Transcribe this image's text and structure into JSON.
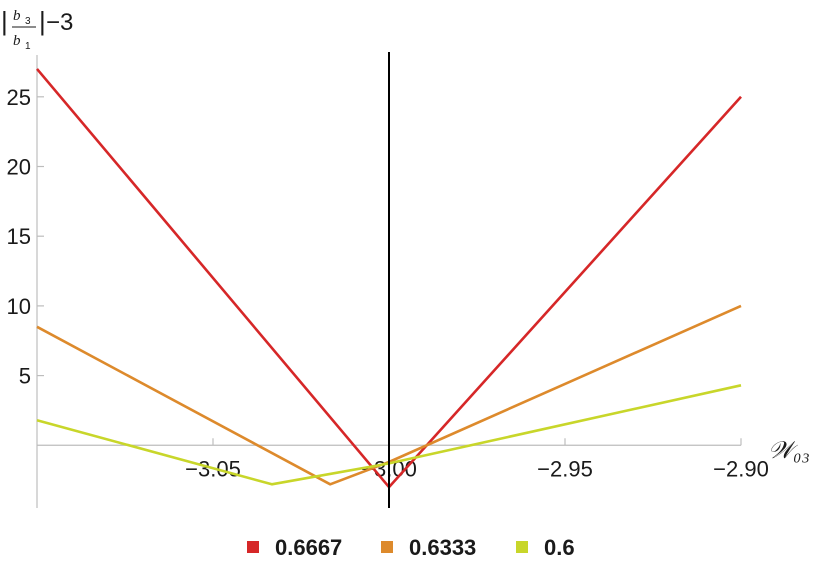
{
  "chart_data": {
    "type": "line",
    "title": "",
    "xlabel": "𝒲₀₃",
    "ylabel": {
      "bar_left": "|",
      "numerator": "b",
      "numerator_sub": "3",
      "denominator": "b",
      "denominator_sub": "1",
      "bar_right": "|",
      "suffix": "−3"
    },
    "xlim": [
      -3.1,
      -2.9
    ],
    "ylim": [
      -4.5,
      28
    ],
    "x_axis_at_y": 0,
    "x_ticks": [
      -3.05,
      -3.0,
      -2.95,
      -2.9
    ],
    "x_tick_labels": [
      "−3.05",
      "−3.00",
      "−2.95",
      "−2.90"
    ],
    "y_ticks": [
      5,
      10,
      15,
      20,
      25
    ],
    "y_tick_labels": [
      "5",
      "10",
      "15",
      "20",
      "25"
    ],
    "vertical_line_x": -3.0,
    "grid": false,
    "legend_position": "bottom",
    "series": [
      {
        "name": "0.6667",
        "color": "#d62728",
        "x": [
          -3.1,
          -3.0,
          -2.9
        ],
        "y": [
          27,
          -3,
          25
        ]
      },
      {
        "name": "0.6333",
        "color": "#dd8a2c",
        "x": [
          -3.1,
          -3.0167,
          -3.0,
          -2.9
        ],
        "y": [
          8.5,
          -2.8,
          -1.2,
          10
        ]
      },
      {
        "name": "0.6",
        "color": "#c8d62a",
        "x": [
          -3.1,
          -3.0333,
          -3.0,
          -2.9
        ],
        "y": [
          1.8,
          -2.8,
          -1.3,
          4.3
        ]
      }
    ]
  }
}
